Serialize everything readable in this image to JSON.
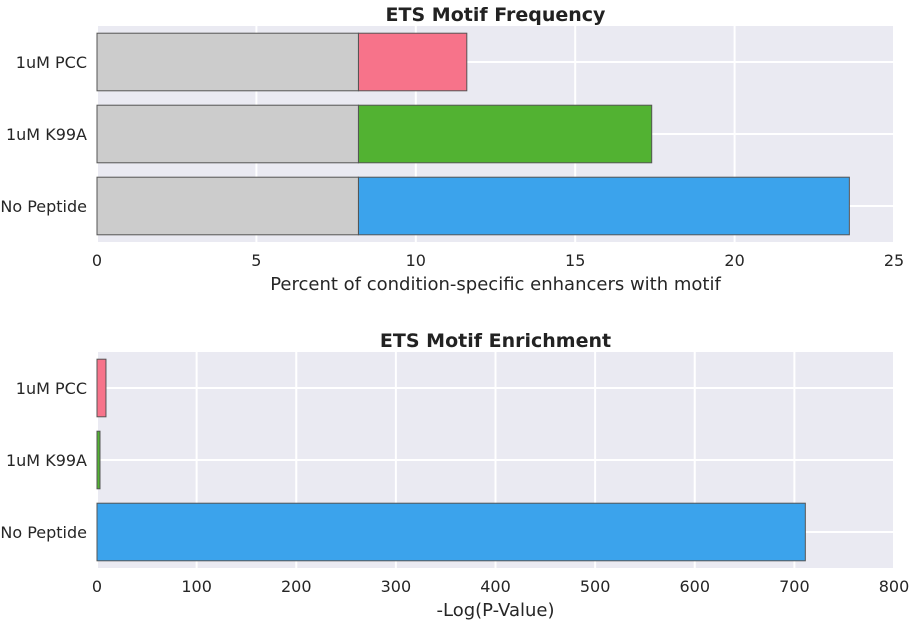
{
  "chart_data": [
    {
      "type": "bar",
      "orientation": "horizontal",
      "title": "ETS Motif Frequency",
      "xlabel": "Percent of condition-specific enhancers with motif",
      "ylabel": "",
      "categories": [
        "1uM PCC",
        "1uM K99A",
        "No Peptide"
      ],
      "background_values": [
        8.2,
        8.2,
        8.2
      ],
      "background_color": "#cccccc",
      "values": [
        11.6,
        17.4,
        23.6
      ],
      "colors": [
        "#f7738a",
        "#52b232",
        "#3ba3ec"
      ],
      "xlim": [
        0,
        25
      ],
      "xticks": [
        0,
        5,
        10,
        15,
        20,
        25
      ],
      "xtick_labels": [
        "0",
        "5",
        "10",
        "15",
        "20",
        "25"
      ],
      "grid": true
    },
    {
      "type": "bar",
      "orientation": "horizontal",
      "title": "ETS Motif Enrichment",
      "xlabel": "-Log(P-Value)",
      "ylabel": "",
      "categories": [
        "1uM PCC",
        "1uM K99A",
        "No Peptide"
      ],
      "values": [
        9,
        3,
        711
      ],
      "colors": [
        "#f7738a",
        "#52b232",
        "#3ba3ec"
      ],
      "xlim": [
        0,
        800
      ],
      "xticks": [
        0,
        100,
        200,
        300,
        400,
        500,
        600,
        700,
        800
      ],
      "xtick_labels": [
        "0",
        "100",
        "200",
        "300",
        "400",
        "500",
        "600",
        "700",
        "800"
      ],
      "grid": true
    }
  ]
}
